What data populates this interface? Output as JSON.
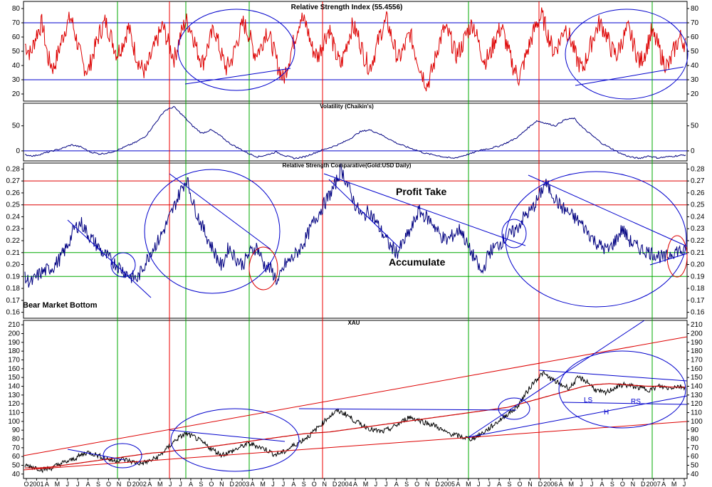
{
  "chart_data": [
    {
      "type": "line",
      "title": "Relative Strength Index (55.4556)",
      "ylim": [
        15,
        85
      ],
      "yticks": [
        20,
        30,
        40,
        50,
        60,
        70,
        80
      ],
      "reference_lines": [
        30,
        70
      ],
      "series": [
        {
          "values": [
            55,
            48,
            62,
            70,
            45,
            38,
            52,
            66,
            74,
            58,
            41,
            36,
            50,
            63,
            71,
            60,
            48,
            55,
            67,
            52,
            40,
            35,
            47,
            58,
            68,
            55,
            45,
            60,
            72,
            65,
            50,
            42,
            56,
            66,
            50,
            38,
            44,
            58,
            70,
            62,
            48,
            52,
            65,
            55,
            40,
            30,
            45,
            60,
            74,
            68,
            52,
            46,
            58,
            66,
            49,
            40,
            55,
            68,
            61,
            47,
            38,
            50,
            64,
            72,
            57,
            44,
            52,
            63,
            48,
            36,
            26,
            38,
            55,
            66,
            60,
            47,
            53,
            64,
            70,
            55,
            43,
            48,
            61,
            67,
            52,
            39,
            31,
            44,
            57,
            69,
            75,
            62,
            50,
            56,
            68,
            58,
            45,
            37,
            48,
            61,
            70,
            64,
            52,
            47,
            58,
            66,
            54,
            42,
            50,
            63,
            56,
            44,
            39,
            51,
            60,
            55
          ]
        }
      ]
    },
    {
      "type": "line",
      "title": "Volatility (Chaikin's)",
      "ylim": [
        -20,
        95
      ],
      "yticks": [
        0,
        50
      ],
      "reference_lines": [
        0
      ],
      "series": [
        {
          "values": [
            -8,
            -10,
            -5,
            0,
            5,
            12,
            8,
            -2,
            -6,
            -4,
            2,
            10,
            18,
            30,
            55,
            80,
            88,
            70,
            50,
            35,
            42,
            30,
            15,
            5,
            -5,
            -12,
            -8,
            -2,
            -10,
            -15,
            -12,
            -5,
            2,
            8,
            15,
            25,
            38,
            42,
            35,
            25,
            15,
            8,
            2,
            -5,
            -8,
            -12,
            -15,
            -10,
            -5,
            2,
            5,
            10,
            18,
            28,
            45,
            60,
            55,
            50,
            62,
            65,
            45,
            30,
            15,
            5,
            -5,
            -12,
            -15,
            -10,
            -14,
            -12,
            -10,
            -8
          ]
        }
      ]
    },
    {
      "type": "line",
      "title": "Relative Strength Comparative(Gold:USD Daily)",
      "ylim": [
        0.155,
        0.285
      ],
      "yticks": [
        0.16,
        0.17,
        0.18,
        0.19,
        0.2,
        0.21,
        0.22,
        0.23,
        0.24,
        0.25,
        0.26,
        0.27,
        0.28
      ],
      "reference_lines": [
        0.19,
        0.21,
        0.25,
        0.27
      ],
      "annotations": [
        "Profit Take",
        "Accumulate",
        "Bear Market Bottom"
      ],
      "series": [
        {
          "values": [
            0.188,
            0.185,
            0.192,
            0.195,
            0.198,
            0.205,
            0.215,
            0.23,
            0.235,
            0.225,
            0.218,
            0.21,
            0.205,
            0.2,
            0.195,
            0.19,
            0.188,
            0.2,
            0.212,
            0.22,
            0.232,
            0.245,
            0.26,
            0.272,
            0.25,
            0.235,
            0.222,
            0.21,
            0.198,
            0.215,
            0.205,
            0.2,
            0.21,
            0.215,
            0.2,
            0.196,
            0.185,
            0.2,
            0.205,
            0.212,
            0.222,
            0.235,
            0.245,
            0.255,
            0.265,
            0.28,
            0.265,
            0.25,
            0.24,
            0.245,
            0.235,
            0.225,
            0.215,
            0.21,
            0.22,
            0.23,
            0.245,
            0.24,
            0.235,
            0.225,
            0.22,
            0.225,
            0.23,
            0.215,
            0.205,
            0.192,
            0.21,
            0.215,
            0.22,
            0.225,
            0.23,
            0.24,
            0.245,
            0.255,
            0.268,
            0.26,
            0.25,
            0.245,
            0.24,
            0.235,
            0.228,
            0.22,
            0.215,
            0.212,
            0.22,
            0.23,
            0.22,
            0.215,
            0.212,
            0.21,
            0.208,
            0.205,
            0.21,
            0.212,
            0.21
          ]
        }
      ]
    },
    {
      "type": "line",
      "title": "XAU",
      "ylim": [
        35,
        215
      ],
      "yticks": [
        40,
        50,
        60,
        70,
        80,
        90,
        100,
        110,
        120,
        130,
        140,
        150,
        160,
        170,
        180,
        190,
        200,
        210
      ],
      "pattern_labels": [
        "LS",
        "H",
        "RS"
      ],
      "x_labels": [
        "O",
        "2001",
        "A",
        "M",
        "J",
        "J",
        "A",
        "S",
        "O",
        "N",
        "D",
        "2002",
        "A",
        "M",
        "J",
        "J",
        "A",
        "S",
        "O",
        "N",
        "D",
        "2003",
        "A",
        "M",
        "J",
        "J",
        "A",
        "S",
        "O",
        "N",
        "D",
        "2004",
        "A",
        "M",
        "J",
        "J",
        "A",
        "S",
        "O",
        "N",
        "D",
        "2005",
        "A",
        "M",
        "J",
        "J",
        "A",
        "S",
        "O",
        "N",
        "D",
        "2006",
        "A",
        "M",
        "J",
        "J",
        "A",
        "S",
        "O",
        "N",
        "D",
        "2007",
        "A",
        "M",
        "J"
      ],
      "series": [
        {
          "values": [
            50,
            48,
            45,
            47,
            52,
            55,
            60,
            65,
            62,
            58,
            55,
            57,
            54,
            52,
            55,
            60,
            70,
            80,
            86,
            82,
            75,
            68,
            62,
            65,
            70,
            75,
            72,
            68,
            62,
            65,
            72,
            78,
            85,
            95,
            105,
            112,
            108,
            100,
            95,
            90,
            88,
            92,
            98,
            105,
            102,
            98,
            95,
            88,
            85,
            82,
            80,
            85,
            92,
            100,
            108,
            115,
            130,
            145,
            155,
            148,
            142,
            138,
            150,
            145,
            135,
            132,
            138,
            142,
            140,
            138,
            136,
            140,
            138,
            140,
            139
          ]
        },
        {
          "values": [
            47,
            47,
            48,
            50,
            52,
            54,
            56,
            58,
            60,
            62,
            64,
            65,
            67,
            68,
            70,
            72,
            74,
            76,
            78,
            80,
            82,
            84,
            86,
            87,
            88,
            90,
            92,
            94,
            96,
            98,
            100,
            102,
            104,
            106,
            108,
            110,
            112,
            114,
            116,
            120,
            124,
            128,
            132,
            136,
            140,
            142,
            143,
            142,
            141,
            140,
            140,
            139,
            139
          ]
        }
      ]
    }
  ]
}
